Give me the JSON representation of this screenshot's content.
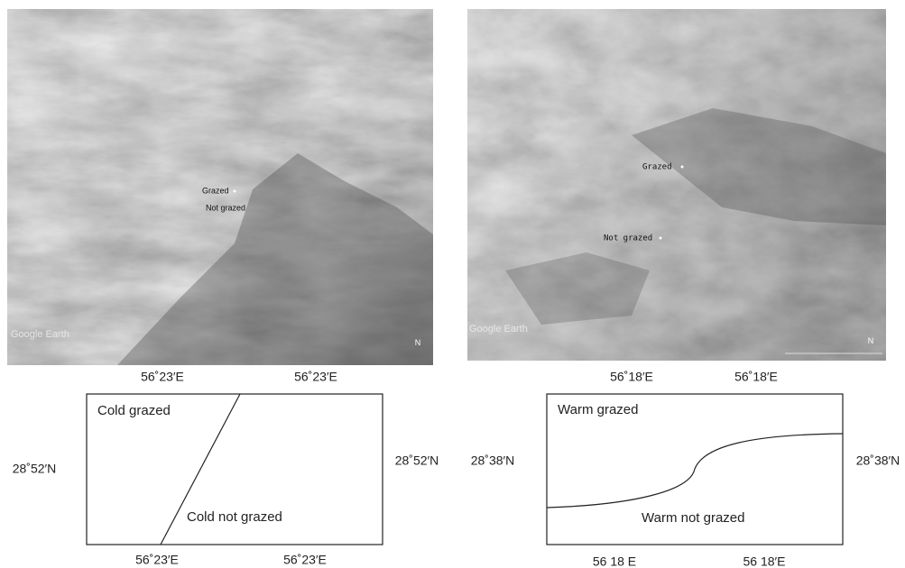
{
  "panels": [
    {
      "image": {
        "labels": [
          "Grazed",
          "Not grazed"
        ],
        "watermark": "Google Earth",
        "north": "N"
      },
      "diagram": {
        "top_labels": [
          "56˚23′E",
          "56˚23′E"
        ],
        "bottom_labels": [
          "56˚23′E",
          "56˚23′E"
        ],
        "left_label": "28˚52′N",
        "right_label": "28˚52′N",
        "regions": [
          "Cold grazed",
          "Cold not grazed"
        ]
      }
    },
    {
      "image": {
        "labels": [
          "Grazed",
          "Not grazed"
        ],
        "watermark": "Google Earth",
        "north": "N"
      },
      "diagram": {
        "top_labels": [
          "56˚18′E",
          "56˚18′E"
        ],
        "bottom_labels": [
          "56 18 E",
          "56 18′E"
        ],
        "left_label": "28˚38′N",
        "right_label": "28˚38′N",
        "regions": [
          "Warm grazed",
          "Warm not grazed"
        ]
      }
    }
  ]
}
